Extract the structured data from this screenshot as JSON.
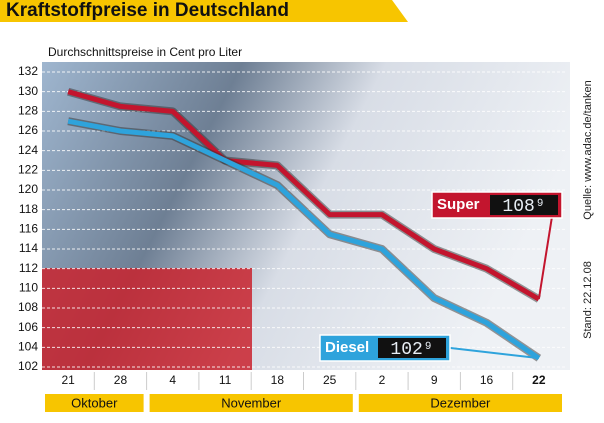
{
  "chart_data": {
    "type": "line",
    "title": "Kraftstoffpreise in Deutschland",
    "subtitle": "Durchschnittspreise in Cent pro Liter",
    "source": "Quelle: www.adac.de/tanken",
    "date_note": "Stand: 22.12.08",
    "categories": [
      "21",
      "28",
      "4",
      "11",
      "18",
      "25",
      "2",
      "9",
      "16",
      "22"
    ],
    "category_groups": [
      "Oktober",
      "Oktober",
      "November",
      "November",
      "November",
      "November",
      "Dezember",
      "Dezember",
      "Dezember",
      "Dezember"
    ],
    "series": [
      {
        "name": "Super",
        "color": "#c3152e",
        "values": [
          130,
          128.5,
          128,
          123,
          122.5,
          117.5,
          117.5,
          114,
          112,
          108.9
        ],
        "value_labels": [
          null,
          null,
          null,
          null,
          null,
          null,
          null,
          null,
          null,
          "108⁹"
        ]
      },
      {
        "name": "Diesel",
        "color": "#2ea3dc",
        "values": [
          127,
          126,
          125.5,
          123,
          120.5,
          115.5,
          114,
          109,
          106.5,
          102.9
        ],
        "value_labels": [
          null,
          null,
          null,
          null,
          null,
          null,
          null,
          null,
          null,
          "102⁹"
        ]
      }
    ],
    "ylim": [
      102,
      132
    ],
    "yticks": [
      102,
      104,
      106,
      108,
      110,
      112,
      114,
      116,
      118,
      120,
      122,
      124,
      126,
      128,
      130,
      132
    ],
    "grid": true
  }
}
